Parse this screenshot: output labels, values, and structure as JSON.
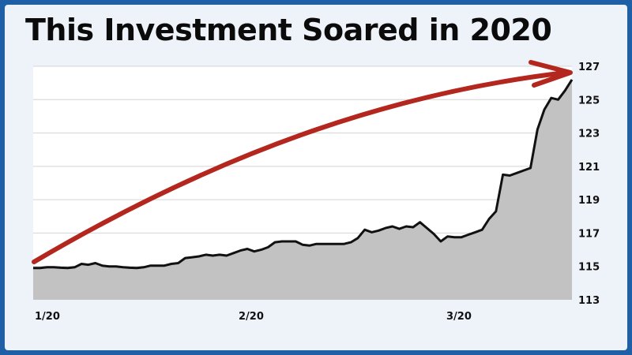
{
  "chart_data": {
    "type": "area",
    "title": "This Investment Soared in 2020",
    "x_ticks": [
      "1/20",
      "2/20",
      "3/20"
    ],
    "y_ticks": [
      113,
      115,
      117,
      119,
      121,
      123,
      125,
      127
    ],
    "ylim": [
      113,
      127
    ],
    "grid": true,
    "y_axis_side": "right",
    "annotation": "upward curved red arrow from lower-left to upper-right",
    "colors": {
      "line": "#111111",
      "fill": "#c2c2c2",
      "arrow": "#b3271e",
      "grid": "#d4d4d4",
      "plot_bg": "#ffffff"
    },
    "series": [
      {
        "values": [
          114.9,
          114.9,
          114.95,
          114.95,
          114.92,
          114.9,
          114.95,
          115.15,
          115.1,
          115.2,
          115.05,
          115.0,
          115.0,
          114.95,
          114.92,
          114.9,
          114.95,
          115.05,
          115.05,
          115.05,
          115.15,
          115.2,
          115.5,
          115.55,
          115.6,
          115.7,
          115.65,
          115.7,
          115.65,
          115.8,
          115.95,
          116.05,
          115.9,
          116.0,
          116.15,
          116.45,
          116.5,
          116.5,
          116.5,
          116.3,
          116.25,
          116.35,
          116.35,
          116.35,
          116.35,
          116.35,
          116.45,
          116.7,
          117.2,
          117.05,
          117.15,
          117.3,
          117.4,
          117.25,
          117.4,
          117.35,
          117.65,
          117.3,
          116.95,
          116.5,
          116.8,
          116.75,
          116.75,
          116.9,
          117.05,
          117.2,
          117.85,
          118.3,
          120.5,
          120.45,
          120.6,
          120.75,
          120.9,
          123.2,
          124.4,
          125.1,
          125.0,
          125.55,
          126.2
        ]
      }
    ]
  }
}
